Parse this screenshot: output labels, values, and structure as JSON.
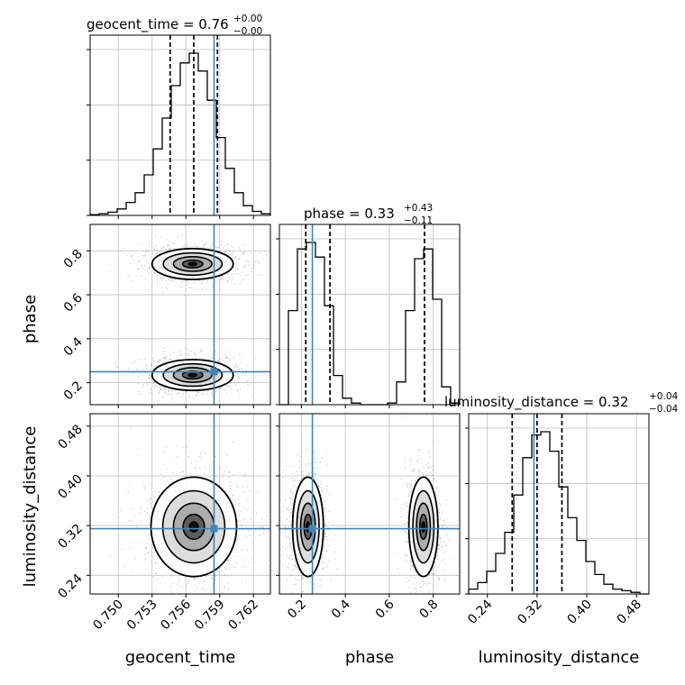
{
  "chart_data": {
    "type": "corner",
    "parameters": [
      {
        "name": "geocent_time",
        "label": "geocent_time",
        "title": "geocent_time = 0.76",
        "err_plus": "+0.00",
        "err_minus": "−0.00",
        "range": [
          0.7475,
          0.7635
        ],
        "ticks": [
          0.75,
          0.753,
          0.756,
          0.759,
          0.762
        ],
        "tick_labels": [
          "0.750",
          "0.753",
          "0.756",
          "0.759",
          "0.762"
        ],
        "quantiles": [
          0.7546,
          0.7567,
          0.7588
        ],
        "truth": 0.7585
      },
      {
        "name": "phase",
        "label": "phase",
        "title": "phase = 0.33",
        "err_plus": "+0.43",
        "err_minus": "−0.11",
        "range": [
          0.1,
          0.92
        ],
        "ticks": [
          0.2,
          0.4,
          0.6,
          0.8
        ],
        "tick_labels": [
          "0.2",
          "0.4",
          "0.6",
          "0.8"
        ],
        "quantiles": [
          0.22,
          0.33,
          0.76
        ],
        "truth": 0.25
      },
      {
        "name": "luminosity_distance",
        "label": "luminosity_distance",
        "title": "luminosity_distance = 0.32",
        "err_plus": "+0.04",
        "err_minus": "−0.04",
        "range": [
          0.21,
          0.5
        ],
        "ticks": [
          0.24,
          0.32,
          0.4,
          0.48
        ],
        "tick_labels": [
          "0.24",
          "0.32",
          "0.40",
          "0.48"
        ],
        "quantiles": [
          0.28,
          0.32,
          0.36
        ],
        "truth": 0.315
      }
    ],
    "marginals": {
      "geocent_time": {
        "bin_edges": [
          0.7475,
          0.7483,
          0.7491,
          0.7499,
          0.7507,
          0.7515,
          0.7523,
          0.7531,
          0.7539,
          0.7547,
          0.7555,
          0.7563,
          0.7571,
          0.7579,
          0.7587,
          0.7595,
          0.7603,
          0.7611,
          0.7619,
          0.7627,
          0.7635
        ],
        "counts": [
          0.005,
          0.01,
          0.02,
          0.04,
          0.08,
          0.14,
          0.25,
          0.41,
          0.6,
          0.8,
          0.94,
          1.0,
          0.89,
          0.71,
          0.48,
          0.29,
          0.14,
          0.06,
          0.025,
          0.01
        ]
      },
      "phase": {
        "bin_edges": [
          0.1,
          0.141,
          0.182,
          0.223,
          0.264,
          0.305,
          0.346,
          0.387,
          0.428,
          0.469,
          0.51,
          0.551,
          0.592,
          0.633,
          0.674,
          0.715,
          0.756,
          0.797,
          0.838,
          0.879,
          0.92
        ],
        "counts": [
          0.0,
          0.58,
          0.96,
          1.0,
          0.91,
          0.61,
          0.18,
          0.04,
          0.01,
          0.0,
          0.0,
          0.0,
          0.01,
          0.14,
          0.58,
          0.9,
          0.96,
          0.65,
          0.11,
          0.01
        ]
      },
      "luminosity_distance": {
        "bin_edges": [
          0.21,
          0.2245,
          0.239,
          0.2535,
          0.268,
          0.2825,
          0.297,
          0.3115,
          0.326,
          0.3405,
          0.355,
          0.3695,
          0.384,
          0.3985,
          0.413,
          0.4275,
          0.442,
          0.4565,
          0.471,
          0.4855,
          0.5
        ],
        "counts": [
          0.03,
          0.07,
          0.14,
          0.25,
          0.38,
          0.61,
          0.84,
          0.98,
          1.0,
          0.88,
          0.66,
          0.47,
          0.33,
          0.2,
          0.12,
          0.06,
          0.03,
          0.02,
          0.01,
          0.0
        ]
      }
    },
    "joint_modes": {
      "phase_vs_geocent_time": [
        {
          "x": 0.7566,
          "y": 0.74,
          "sx": 0.0018,
          "sy": 0.035
        },
        {
          "x": 0.7566,
          "y": 0.235,
          "sx": 0.0018,
          "sy": 0.035
        }
      ],
      "luminosity_distance_vs_geocent_time": [
        {
          "x": 0.7567,
          "y": 0.318,
          "sx": 0.0019,
          "sy": 0.04
        }
      ],
      "luminosity_distance_vs_phase": [
        {
          "x": 0.23,
          "y": 0.318,
          "sx": 0.035,
          "sy": 0.04
        },
        {
          "x": 0.755,
          "y": 0.318,
          "sx": 0.033,
          "sy": 0.04
        }
      ]
    },
    "grid": true,
    "colors": {
      "hist": "#000000",
      "truth": "#4682b4",
      "grid": "#bfbfbf",
      "points": "#9a9a9a"
    }
  }
}
